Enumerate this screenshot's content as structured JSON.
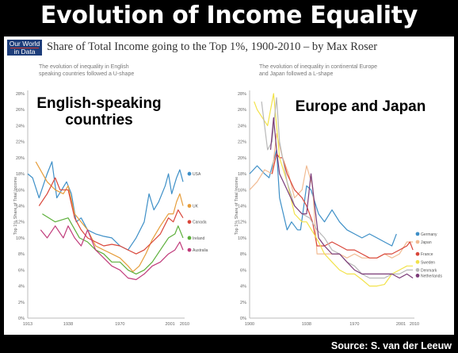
{
  "headline": "Evolution of Income Equality",
  "logo": {
    "line1": "Our World",
    "line2": "in Data"
  },
  "subtitle": "Share of Total Income going to the Top 1%, 1900-2010 – by Max Roser",
  "source": "Source: S. van der Leeuw",
  "chart_data": [
    {
      "type": "line",
      "caption": [
        "The evolution of inequality in English",
        "speaking countries followed a U-shape"
      ],
      "overlay_title": [
        "English-speaking",
        "countries"
      ],
      "ylabel": "Top 1% Share of Total Income",
      "xlim": [
        1913,
        2010
      ],
      "ylim": [
        0,
        28
      ],
      "yticks": [
        "0%",
        "2%",
        "4%",
        "6%",
        "8%",
        "10%",
        "12%",
        "14%",
        "16%",
        "18%",
        "20%",
        "22%",
        "24%",
        "26%",
        "28%"
      ],
      "xticks": [
        1913,
        1938,
        1970,
        2001,
        2010
      ],
      "grid": false,
      "series": [
        {
          "name": "USA",
          "color": "#3d8fc7",
          "points": [
            [
              1913,
              18
            ],
            [
              1916,
              17.5
            ],
            [
              1920,
              15
            ],
            [
              1925,
              18
            ],
            [
              1928,
              19.5
            ],
            [
              1931,
              15
            ],
            [
              1934,
              16
            ],
            [
              1937,
              17
            ],
            [
              1940,
              15.5
            ],
            [
              1943,
              12
            ],
            [
              1946,
              12.5
            ],
            [
              1950,
              11
            ],
            [
              1955,
              10.5
            ],
            [
              1960,
              10.2
            ],
            [
              1965,
              10
            ],
            [
              1970,
              9
            ],
            [
              1975,
              8.5
            ],
            [
              1980,
              10
            ],
            [
              1985,
              12
            ],
            [
              1988,
              15.5
            ],
            [
              1991,
              13.5
            ],
            [
              1994,
              14.5
            ],
            [
              1998,
              16.5
            ],
            [
              2000,
              18
            ],
            [
              2002,
              15.5
            ],
            [
              2005,
              17.5
            ],
            [
              2007,
              18.5
            ],
            [
              2009,
              17
            ]
          ]
        },
        {
          "name": "UK",
          "color": "#e69d3b",
          "points": [
            [
              1918,
              19.5
            ],
            [
              1925,
              17
            ],
            [
              1930,
              16
            ],
            [
              1935,
              15.5
            ],
            [
              1938,
              16.5
            ],
            [
              1942,
              13
            ],
            [
              1946,
              12
            ],
            [
              1950,
              11
            ],
            [
              1955,
              9
            ],
            [
              1960,
              8.5
            ],
            [
              1965,
              8
            ],
            [
              1970,
              7.5
            ],
            [
              1975,
              6.5
            ],
            [
              1978,
              5.8
            ],
            [
              1982,
              6.5
            ],
            [
              1986,
              8
            ],
            [
              1990,
              9.8
            ],
            [
              1995,
              11.5
            ],
            [
              2000,
              13
            ],
            [
              2003,
              13
            ],
            [
              2005,
              14.5
            ],
            [
              2007,
              15.5
            ],
            [
              2009,
              14
            ]
          ]
        },
        {
          "name": "Canada",
          "color": "#d9463a",
          "points": [
            [
              1920,
              14
            ],
            [
              1925,
              15.5
            ],
            [
              1930,
              17.5
            ],
            [
              1933,
              16
            ],
            [
              1938,
              16
            ],
            [
              1942,
              12.5
            ],
            [
              1946,
              11
            ],
            [
              1950,
              10
            ],
            [
              1955,
              9.5
            ],
            [
              1960,
              9
            ],
            [
              1965,
              9.2
            ],
            [
              1970,
              9
            ],
            [
              1975,
              8.5
            ],
            [
              1980,
              8
            ],
            [
              1985,
              8.5
            ],
            [
              1990,
              9.5
            ],
            [
              1995,
              10.5
            ],
            [
              2000,
              12.5
            ],
            [
              2003,
              12
            ],
            [
              2006,
              13.5
            ],
            [
              2009,
              12.5
            ]
          ]
        },
        {
          "name": "Ireland",
          "color": "#5caf3a",
          "points": [
            [
              1922,
              13
            ],
            [
              1930,
              12
            ],
            [
              1938,
              12.5
            ],
            [
              1945,
              10
            ],
            [
              1950,
              9.5
            ],
            [
              1955,
              8.5
            ],
            [
              1960,
              8
            ],
            [
              1965,
              7
            ],
            [
              1970,
              7
            ],
            [
              1975,
              6
            ],
            [
              1980,
              5.5
            ],
            [
              1985,
              6
            ],
            [
              1990,
              7
            ],
            [
              1995,
              8.5
            ],
            [
              2000,
              10
            ],
            [
              2004,
              10.5
            ],
            [
              2006,
              11.5
            ],
            [
              2009,
              10
            ]
          ]
        },
        {
          "name": "Australia",
          "color": "#c03a7a",
          "points": [
            [
              1921,
              11
            ],
            [
              1925,
              10
            ],
            [
              1930,
              11.5
            ],
            [
              1935,
              10
            ],
            [
              1938,
              11.5
            ],
            [
              1942,
              10
            ],
            [
              1946,
              9
            ],
            [
              1950,
              11
            ],
            [
              1955,
              8.5
            ],
            [
              1960,
              7.5
            ],
            [
              1965,
              6.5
            ],
            [
              1970,
              6
            ],
            [
              1975,
              5
            ],
            [
              1980,
              4.8
            ],
            [
              1985,
              5.5
            ],
            [
              1990,
              6.5
            ],
            [
              1995,
              7
            ],
            [
              2000,
              8
            ],
            [
              2004,
              8.5
            ],
            [
              2007,
              9.5
            ],
            [
              2009,
              8.5
            ]
          ]
        }
      ]
    },
    {
      "type": "line",
      "caption": [
        "The evolution of inequality in continental Europe",
        "and Japan followed a L-shape"
      ],
      "overlay_title": [
        "Europe and Japan"
      ],
      "ylabel": "Top 1% Share of Total Income",
      "xlim": [
        1900,
        2010
      ],
      "ylim": [
        0,
        28
      ],
      "yticks": [
        "0%",
        "2%",
        "4%",
        "6%",
        "8%",
        "10%",
        "12%",
        "14%",
        "16%",
        "18%",
        "20%",
        "22%",
        "24%",
        "26%",
        "28%"
      ],
      "xticks": [
        1900,
        1938,
        1970,
        2001,
        2010
      ],
      "grid": false,
      "series": [
        {
          "name": "Germany",
          "color": "#3d8fc7",
          "points": [
            [
              1900,
              18
            ],
            [
              1905,
              19
            ],
            [
              1910,
              18
            ],
            [
              1913,
              17.5
            ],
            [
              1918,
              21
            ],
            [
              1920,
              15
            ],
            [
              1925,
              11
            ],
            [
              1928,
              12
            ],
            [
              1932,
              11
            ],
            [
              1934,
              11
            ],
            [
              1938,
              16.5
            ],
            [
              1941,
              16
            ],
            [
              1946,
              13
            ],
            [
              1950,
              12
            ],
            [
              1955,
              13.5
            ],
            [
              1960,
              12
            ],
            [
              1965,
              11
            ],
            [
              1970,
              10.5
            ],
            [
              1975,
              10
            ],
            [
              1980,
              10.5
            ],
            [
              1985,
              10
            ],
            [
              1990,
              9.5
            ],
            [
              1995,
              9
            ],
            [
              1998,
              10.5
            ]
          ]
        },
        {
          "name": "Japan",
          "color": "#f1bb93",
          "points": [
            [
              1900,
              16
            ],
            [
              1905,
              17
            ],
            [
              1910,
              18.5
            ],
            [
              1915,
              18
            ],
            [
              1918,
              23
            ],
            [
              1922,
              20
            ],
            [
              1926,
              18
            ],
            [
              1930,
              15
            ],
            [
              1935,
              16
            ],
            [
              1938,
              19
            ],
            [
              1942,
              16.5
            ],
            [
              1945,
              8
            ],
            [
              1950,
              8
            ],
            [
              1955,
              8
            ],
            [
              1960,
              8
            ],
            [
              1965,
              7.5
            ],
            [
              1970,
              8
            ],
            [
              1975,
              7.5
            ],
            [
              1980,
              7.5
            ],
            [
              1985,
              7.5
            ],
            [
              1990,
              8
            ],
            [
              1995,
              7.5
            ],
            [
              2000,
              8
            ],
            [
              2005,
              9.5
            ],
            [
              2009,
              9.5
            ]
          ]
        },
        {
          "name": "France",
          "color": "#d9463a",
          "points": [
            [
              1915,
              18
            ],
            [
              1918,
              20.5
            ],
            [
              1920,
              20
            ],
            [
              1922,
              20
            ],
            [
              1925,
              18
            ],
            [
              1930,
              16
            ],
            [
              1935,
              15
            ],
            [
              1938,
              14
            ],
            [
              1942,
              12
            ],
            [
              1945,
              9
            ],
            [
              1950,
              9
            ],
            [
              1955,
              9.5
            ],
            [
              1960,
              9
            ],
            [
              1965,
              8.5
            ],
            [
              1970,
              8.5
            ],
            [
              1975,
              8
            ],
            [
              1980,
              7.5
            ],
            [
              1985,
              7.5
            ],
            [
              1990,
              8
            ],
            [
              1995,
              8
            ],
            [
              2000,
              8.5
            ],
            [
              2005,
              9
            ],
            [
              2007,
              9.5
            ],
            [
              2009,
              8.5
            ]
          ]
        },
        {
          "name": "Sweden",
          "color": "#f2e24a",
          "points": [
            [
              1903,
              27
            ],
            [
              1905,
              26
            ],
            [
              1912,
              24
            ],
            [
              1916,
              28
            ],
            [
              1920,
              20
            ],
            [
              1925,
              17
            ],
            [
              1930,
              13
            ],
            [
              1935,
              12
            ],
            [
              1938,
              12
            ],
            [
              1943,
              10.5
            ],
            [
              1946,
              9.5
            ],
            [
              1950,
              8
            ],
            [
              1955,
              7
            ],
            [
              1960,
              6
            ],
            [
              1965,
              5.5
            ],
            [
              1970,
              5.5
            ],
            [
              1975,
              4.8
            ],
            [
              1980,
              4
            ],
            [
              1985,
              4
            ],
            [
              1990,
              4.2
            ],
            [
              1995,
              5.5
            ],
            [
              2000,
              6
            ],
            [
              2005,
              6.5
            ],
            [
              2009,
              6.5
            ]
          ]
        },
        {
          "name": "Denmark",
          "color": "#b8b8b8",
          "points": [
            [
              1908,
              27
            ],
            [
              1912,
              21
            ],
            [
              1915,
              22
            ],
            [
              1918,
              27.5
            ],
            [
              1920,
              22
            ],
            [
              1925,
              17
            ],
            [
              1930,
              14
            ],
            [
              1935,
              13
            ],
            [
              1940,
              12.5
            ],
            [
              1945,
              11
            ],
            [
              1950,
              10
            ],
            [
              1955,
              8.5
            ],
            [
              1960,
              8
            ],
            [
              1965,
              7
            ],
            [
              1970,
              6.5
            ],
            [
              1975,
              5.5
            ],
            [
              1980,
              5
            ],
            [
              1985,
              5
            ],
            [
              1990,
              5
            ],
            [
              1995,
              5.5
            ],
            [
              2000,
              5.5
            ],
            [
              2005,
              6
            ],
            [
              2009,
              6
            ]
          ]
        },
        {
          "name": "Netherlands",
          "color": "#7b3b78",
          "points": [
            [
              1914,
              21
            ],
            [
              1916,
              25
            ],
            [
              1918,
              21
            ],
            [
              1920,
              18
            ],
            [
              1925,
              16
            ],
            [
              1930,
              14
            ],
            [
              1935,
              13
            ],
            [
              1938,
              13
            ],
            [
              1941,
              18
            ],
            [
              1946,
              10
            ],
            [
              1950,
              9
            ],
            [
              1955,
              8
            ],
            [
              1960,
              8
            ],
            [
              1965,
              7
            ],
            [
              1970,
              6
            ],
            [
              1975,
              5.5
            ],
            [
              1980,
              5.5
            ],
            [
              1985,
              5.5
            ],
            [
              1990,
              5.5
            ],
            [
              1995,
              5.5
            ],
            [
              2000,
              5
            ],
            [
              2005,
              5.5
            ],
            [
              2009,
              5
            ]
          ]
        }
      ]
    }
  ]
}
